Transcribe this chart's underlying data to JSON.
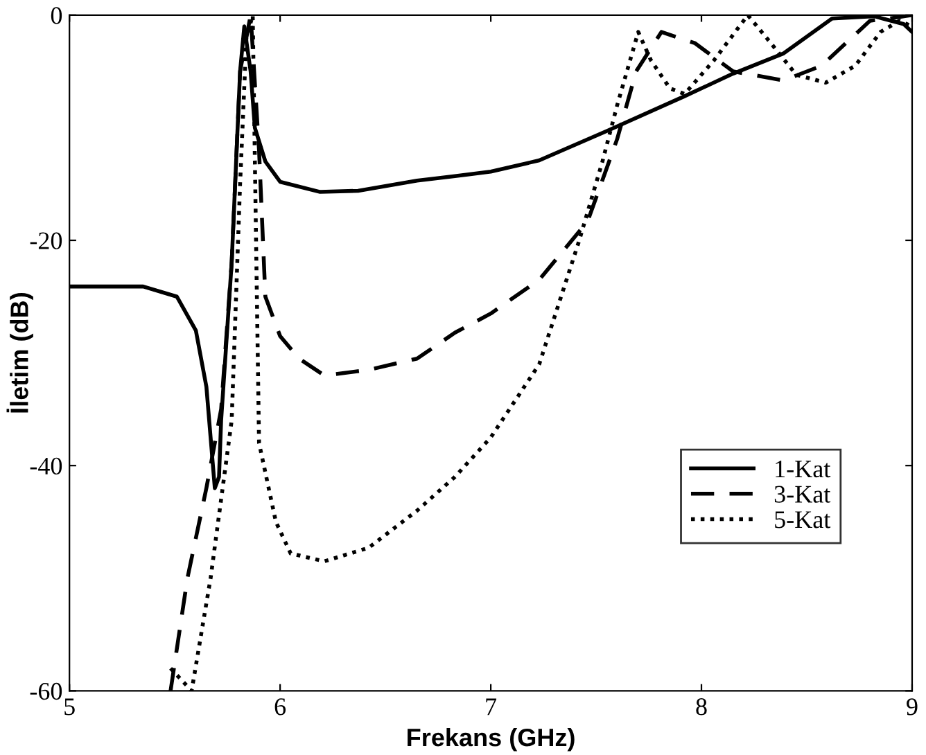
{
  "chart_data": {
    "type": "line",
    "xlabel": "Frekans (GHz)",
    "ylabel": "İletim (dB)",
    "xlim": [
      5,
      9
    ],
    "ylim": [
      -60,
      0
    ],
    "xticks": [
      5,
      6,
      7,
      8,
      9
    ],
    "yticks": [
      -60,
      -40,
      -20,
      0
    ],
    "grid": false,
    "legend": "lower right",
    "series": [
      {
        "name": "1-Kat",
        "color": "#000000",
        "line_style": "solid",
        "x": [
          5.0,
          5.35,
          5.51,
          5.6,
          5.65,
          5.69,
          5.71,
          5.72,
          5.77,
          5.81,
          5.83,
          5.86,
          5.88,
          5.93,
          6.0,
          6.19,
          6.37,
          6.65,
          6.83,
          7.0,
          7.23,
          7.55,
          7.92,
          8.15,
          8.39,
          8.62,
          8.82,
          8.96,
          9.0
        ],
        "values": [
          -24.1,
          -24.1,
          -25,
          -28,
          -33,
          -42,
          -41,
          -36,
          -22,
          -5,
          -1,
          -5,
          -10,
          -13,
          -14.8,
          -15.7,
          -15.6,
          -14.7,
          -14.3,
          -13.9,
          -12.9,
          -10.3,
          -7.2,
          -5.2,
          -3.4,
          -0.3,
          -0.1,
          -0.8,
          -1.5
        ]
      },
      {
        "name": "3-Kat",
        "color": "#000000",
        "line_style": "dashed",
        "x": [
          5.48,
          5.56,
          5.65,
          5.72,
          5.77,
          5.81,
          5.86,
          5.9,
          5.93,
          6.0,
          6.09,
          6.21,
          6.42,
          6.65,
          6.83,
          7.0,
          7.23,
          7.46,
          7.6,
          7.69,
          7.81,
          7.97,
          8.15,
          8.39,
          8.57,
          8.8,
          8.89,
          9.0
        ],
        "values": [
          -60,
          -50,
          -42,
          -35,
          -22,
          -5,
          0,
          -12,
          -25,
          -28.5,
          -30.5,
          -32,
          -31.5,
          -30.5,
          -28.2,
          -26.5,
          -23.5,
          -18.3,
          -11,
          -5,
          -1.5,
          -2.5,
          -5,
          -5.8,
          -4.5,
          -0.5,
          -0.3,
          0
        ]
      },
      {
        "name": "5-Kat",
        "color": "#000000",
        "line_style": "dotted",
        "x": [
          5.48,
          5.58,
          5.67,
          5.77,
          5.81,
          5.84,
          5.87,
          5.9,
          5.98,
          6.05,
          6.21,
          6.42,
          6.65,
          6.83,
          7.0,
          7.23,
          7.42,
          7.53,
          7.6,
          7.7,
          7.76,
          7.85,
          7.92,
          8.06,
          8.22,
          8.33,
          8.45,
          8.59,
          8.73,
          8.85,
          8.94,
          9.0
        ],
        "values": [
          -58,
          -60,
          -50,
          -36,
          -15,
          -2,
          0,
          -38,
          -45,
          -47.8,
          -48.5,
          -47.3,
          -44,
          -41,
          -37.5,
          -31,
          -20,
          -13,
          -8,
          -1.5,
          -4,
          -6.5,
          -7,
          -4,
          0,
          -2.5,
          -5.3,
          -6,
          -4.5,
          -1.5,
          -0.5,
          -1
        ]
      }
    ]
  }
}
